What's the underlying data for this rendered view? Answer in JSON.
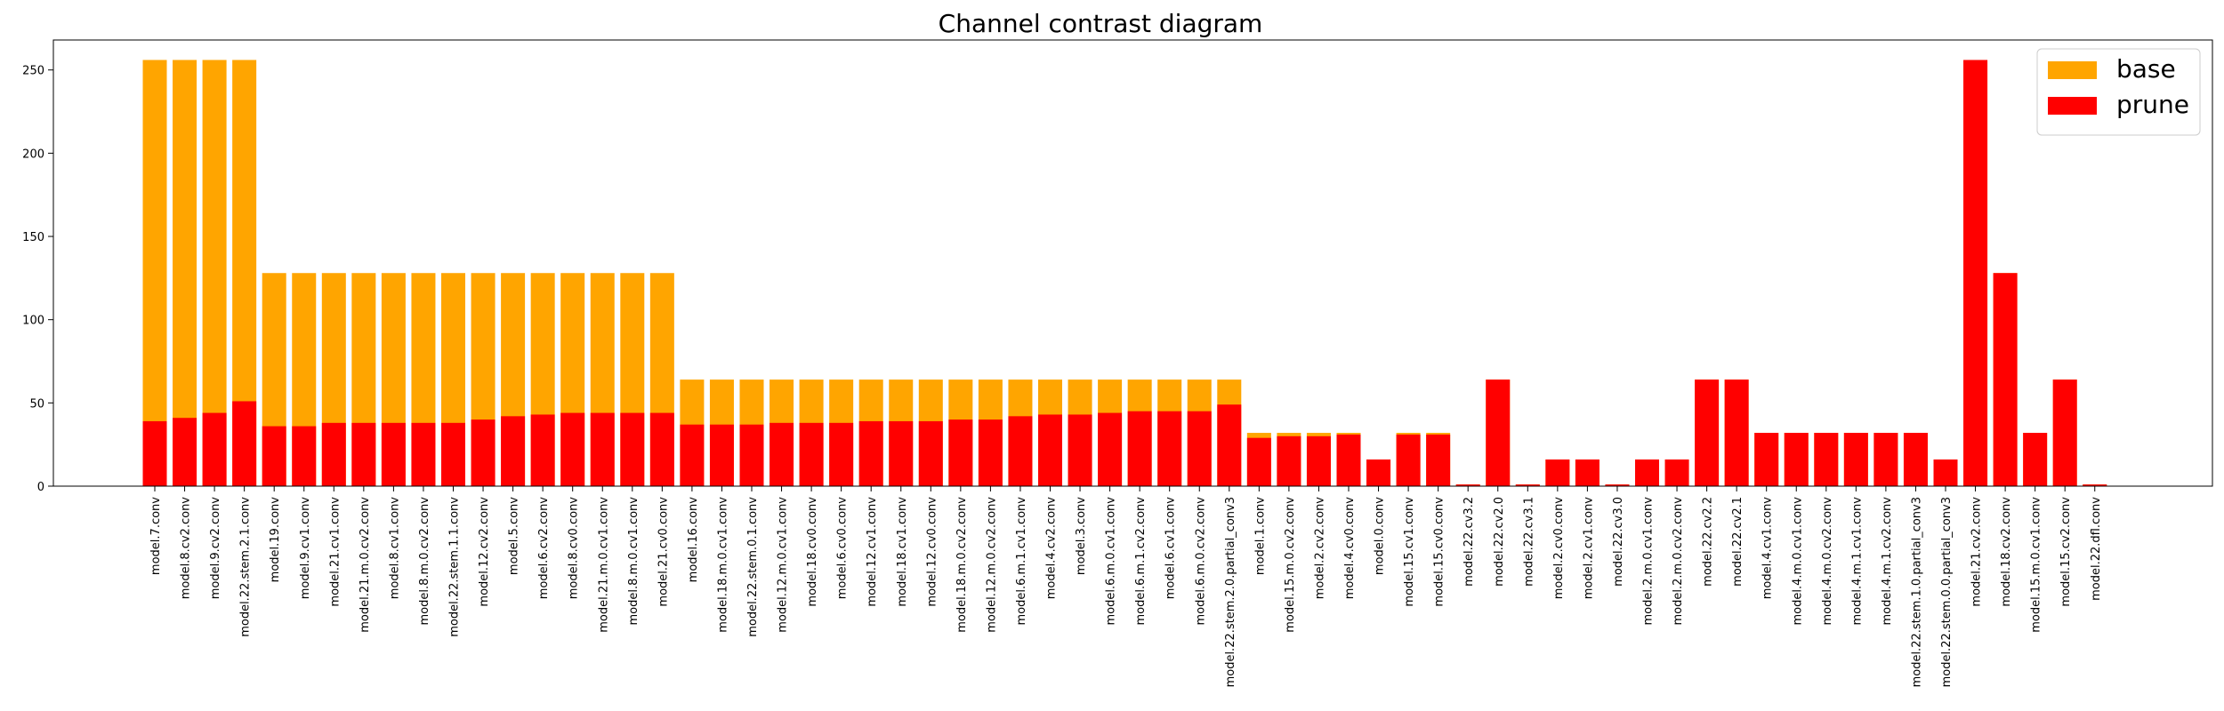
{
  "chart_data": {
    "type": "bar",
    "title": "Channel contrast diagram",
    "xlabel": "",
    "ylabel": "",
    "ylim": [
      0,
      268
    ],
    "yticks": [
      0,
      50,
      100,
      150,
      200,
      250
    ],
    "legend_position": "top-right",
    "categories": [
      "model.7.conv",
      "model.8.cv2.conv",
      "model.9.cv2.conv",
      "model.22.stem.2.1.conv",
      "model.19.conv",
      "model.9.cv1.conv",
      "model.21.cv1.conv",
      "model.21.m.0.cv2.conv",
      "model.8.cv1.conv",
      "model.8.m.0.cv2.conv",
      "model.22.stem.1.1.conv",
      "model.12.cv2.conv",
      "model.5.conv",
      "model.6.cv2.conv",
      "model.8.cv0.conv",
      "model.21.m.0.cv1.conv",
      "model.8.m.0.cv1.conv",
      "model.21.cv0.conv",
      "model.16.conv",
      "model.18.m.0.cv1.conv",
      "model.22.stem.0.1.conv",
      "model.12.m.0.cv1.conv",
      "model.18.cv0.conv",
      "model.6.cv0.conv",
      "model.12.cv1.conv",
      "model.18.cv1.conv",
      "model.12.cv0.conv",
      "model.18.m.0.cv2.conv",
      "model.12.m.0.cv2.conv",
      "model.6.m.1.cv1.conv",
      "model.4.cv2.conv",
      "model.3.conv",
      "model.6.m.0.cv1.conv",
      "model.6.m.1.cv2.conv",
      "model.6.cv1.conv",
      "model.6.m.0.cv2.conv",
      "model.22.stem.2.0.partial_conv3",
      "model.1.conv",
      "model.15.m.0.cv2.conv",
      "model.2.cv2.conv",
      "model.4.cv0.conv",
      "model.0.conv",
      "model.15.cv1.conv",
      "model.15.cv0.conv",
      "model.22.cv3.2",
      "model.22.cv2.0",
      "model.22.cv3.1",
      "model.2.cv0.conv",
      "model.2.cv1.conv",
      "model.22.cv3.0",
      "model.2.m.0.cv1.conv",
      "model.2.m.0.cv2.conv",
      "model.22.cv2.2",
      "model.22.cv2.1",
      "model.4.cv1.conv",
      "model.4.m.0.cv1.conv",
      "model.4.m.0.cv2.conv",
      "model.4.m.1.cv1.conv",
      "model.4.m.1.cv2.conv",
      "model.22.stem.1.0.partial_conv3",
      "model.22.stem.0.0.partial_conv3",
      "model.21.cv2.conv",
      "model.18.cv2.conv",
      "model.15.m.0.cv1.conv",
      "model.15.cv2.conv",
      "model.22.dfl.conv"
    ],
    "series": [
      {
        "name": "base",
        "color": "#ffa500",
        "values": [
          256,
          256,
          256,
          256,
          128,
          128,
          128,
          128,
          128,
          128,
          128,
          128,
          128,
          128,
          128,
          128,
          128,
          128,
          64,
          64,
          64,
          64,
          64,
          64,
          64,
          64,
          64,
          64,
          64,
          64,
          64,
          64,
          64,
          64,
          64,
          64,
          64,
          32,
          32,
          32,
          32,
          16,
          32,
          32,
          1,
          64,
          1,
          16,
          16,
          1,
          16,
          16,
          64,
          64,
          32,
          32,
          32,
          32,
          32,
          32,
          16,
          256,
          128,
          32,
          64,
          1
        ]
      },
      {
        "name": "prune",
        "color": "#ff0000",
        "values": [
          39,
          41,
          44,
          51,
          36,
          36,
          38,
          38,
          38,
          38,
          38,
          40,
          42,
          43,
          44,
          44,
          44,
          44,
          37,
          37,
          37,
          38,
          38,
          38,
          39,
          39,
          39,
          40,
          40,
          42,
          43,
          43,
          44,
          45,
          45,
          45,
          49,
          29,
          30,
          30,
          31,
          16,
          31,
          31,
          1,
          64,
          1,
          16,
          16,
          1,
          16,
          16,
          64,
          64,
          32,
          32,
          32,
          32,
          32,
          32,
          16,
          256,
          128,
          32,
          64,
          1
        ]
      }
    ]
  }
}
